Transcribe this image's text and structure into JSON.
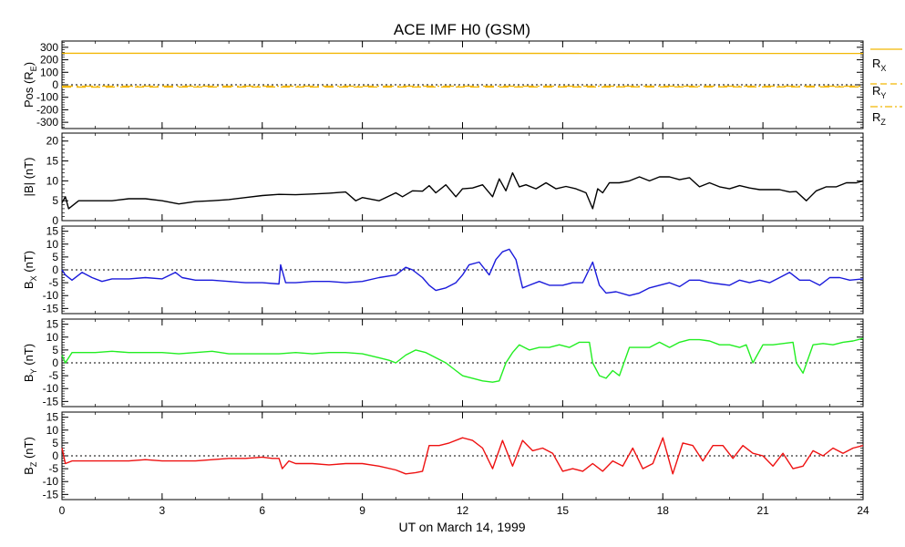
{
  "title": "ACE IMF H0 (GSM)",
  "xlabel": "UT on March 14, 1999",
  "chart_data": [
    {
      "type": "line",
      "panel": "position",
      "ylabel": {
        "main": "Pos (R",
        "sub": "E",
        "tail": ")"
      },
      "ylim": [
        -350,
        350
      ],
      "yticks": [
        -300,
        -200,
        -100,
        0,
        100,
        200,
        300
      ],
      "zero_line": true,
      "legend": [
        {
          "main": "R",
          "sub": "X"
        },
        {
          "main": "R",
          "sub": "Y"
        },
        {
          "main": "R",
          "sub": "Z"
        }
      ],
      "series": [
        {
          "name": "RX",
          "color": "#f2b705",
          "style": "solid",
          "x": [
            0,
            24
          ],
          "values": [
            252,
            251
          ]
        },
        {
          "name": "RY",
          "color": "#f2b705",
          "style": "dashed",
          "x": [
            0,
            24
          ],
          "values": [
            -18,
            -17
          ]
        },
        {
          "name": "RZ",
          "color": "#f2b705",
          "style": "dashdot",
          "x": [
            0,
            24
          ],
          "values": [
            -12,
            -12
          ]
        }
      ]
    },
    {
      "type": "line",
      "panel": "bmag",
      "ylabel": {
        "main": "|B| (nT)",
        "sub": "",
        "tail": ""
      },
      "ylim": [
        0,
        22
      ],
      "yticks": [
        0,
        5,
        10,
        15,
        20
      ],
      "zero_line": false,
      "series": [
        {
          "color": "#000000",
          "x": [
            0,
            0.1,
            0.2,
            0.5,
            1,
            1.5,
            2,
            2.5,
            3,
            3.5,
            4,
            4.5,
            5,
            5.5,
            6,
            6.5,
            7,
            7.5,
            8,
            8.5,
            8.8,
            9,
            9.5,
            10,
            10.2,
            10.5,
            10.8,
            11,
            11.2,
            11.5,
            11.8,
            12,
            12.3,
            12.6,
            12.9,
            13.1,
            13.3,
            13.5,
            13.7,
            13.9,
            14.2,
            14.5,
            14.8,
            15.1,
            15.4,
            15.7,
            15.9,
            16.05,
            16.2,
            16.4,
            16.7,
            17,
            17.3,
            17.6,
            17.9,
            18.2,
            18.5,
            18.8,
            19.1,
            19.4,
            19.7,
            20,
            20.3,
            20.6,
            20.9,
            21.2,
            21.5,
            21.8,
            22,
            22.3,
            22.6,
            22.9,
            23.2,
            23.5,
            23.8,
            24
          ],
          "values": [
            4.5,
            6,
            3,
            5,
            5,
            5,
            5.5,
            5.5,
            5,
            4.2,
            4.8,
            5,
            5.3,
            5.8,
            6.3,
            6.6,
            6.5,
            6.7,
            6.9,
            7.2,
            5,
            5.8,
            5,
            7,
            6,
            7.5,
            7.4,
            8.8,
            7,
            9,
            6,
            8,
            8.2,
            9,
            6,
            10.5,
            7.5,
            12,
            8.5,
            9,
            8,
            9.5,
            8,
            8.6,
            8,
            7,
            3,
            8,
            7,
            9.5,
            9.5,
            10,
            11,
            10,
            11,
            11,
            10.3,
            10.8,
            8.5,
            9.5,
            8.5,
            8,
            8.8,
            8.2,
            7.8,
            7.8,
            7.8,
            7.2,
            7.3,
            5,
            7.5,
            8.5,
            8.5,
            9.5,
            9.5,
            10
          ]
        }
      ]
    },
    {
      "type": "line",
      "panel": "bx",
      "ylabel": {
        "main": "B",
        "sub": "X",
        "tail": " (nT)"
      },
      "ylim": [
        -17,
        17
      ],
      "yticks": [
        -15,
        -10,
        -5,
        0,
        5,
        10,
        15
      ],
      "zero_line": true,
      "series": [
        {
          "color": "#1a1adb",
          "x": [
            0,
            0.1,
            0.3,
            0.6,
            0.9,
            1.2,
            1.5,
            2,
            2.5,
            3,
            3.4,
            3.6,
            4,
            4.5,
            5,
            5.5,
            6,
            6.5,
            6.55,
            6.7,
            7,
            7.5,
            8,
            8.5,
            9,
            9.5,
            10,
            10.3,
            10.5,
            10.8,
            11,
            11.2,
            11.5,
            11.8,
            12,
            12.2,
            12.5,
            12.8,
            13,
            13.2,
            13.4,
            13.6,
            13.8,
            14,
            14.3,
            14.6,
            15,
            15.3,
            15.6,
            15.9,
            16.1,
            16.3,
            16.6,
            17,
            17.3,
            17.6,
            17.9,
            18.2,
            18.5,
            18.8,
            19.1,
            19.4,
            19.7,
            20,
            20.3,
            20.6,
            20.9,
            21.2,
            21.5,
            21.8,
            22.1,
            22.4,
            22.7,
            23,
            23.3,
            23.6,
            24
          ],
          "values": [
            0,
            -2,
            -4,
            -1,
            -3,
            -4.5,
            -3.5,
            -3.5,
            -3,
            -3.5,
            -1,
            -3,
            -4,
            -4,
            -4.5,
            -5,
            -5,
            -5.5,
            2,
            -5,
            -5,
            -4.5,
            -4.5,
            -5,
            -4.5,
            -3,
            -2,
            1,
            0,
            -3,
            -6,
            -8,
            -7,
            -5,
            -2,
            2,
            3,
            -2,
            4,
            7,
            8,
            4,
            -7,
            -6,
            -4.5,
            -6,
            -6,
            -5,
            -5,
            3,
            -6,
            -9,
            -8.5,
            -10,
            -9,
            -7,
            -6,
            -5,
            -6.5,
            -4,
            -4,
            -5,
            -5.5,
            -6,
            -4,
            -5,
            -4,
            -5,
            -3,
            -1,
            -4,
            -4,
            -6,
            -3,
            -3,
            -4,
            -3.5
          ]
        }
      ]
    },
    {
      "type": "line",
      "panel": "by",
      "ylabel": {
        "main": "B",
        "sub": "Y",
        "tail": " (nT)"
      },
      "ylim": [
        -17,
        17
      ],
      "yticks": [
        -15,
        -10,
        -5,
        0,
        5,
        10,
        15
      ],
      "zero_line": true,
      "series": [
        {
          "color": "#22ee22",
          "x": [
            0,
            0.1,
            0.3,
            0.6,
            1,
            1.5,
            2,
            2.5,
            3,
            3.5,
            4,
            4.5,
            5,
            5.5,
            6,
            6.5,
            7,
            7.5,
            8,
            8.5,
            9,
            9.5,
            9.8,
            10,
            10.3,
            10.6,
            10.9,
            11.2,
            11.5,
            11.8,
            12,
            12.3,
            12.6,
            12.9,
            13.1,
            13.3,
            13.5,
            13.7,
            14,
            14.3,
            14.6,
            14.9,
            15.2,
            15.5,
            15.8,
            15.9,
            16.1,
            16.3,
            16.5,
            16.7,
            17,
            17.3,
            17.6,
            17.9,
            18.2,
            18.5,
            18.8,
            19.1,
            19.4,
            19.7,
            20,
            20.3,
            20.5,
            20.7,
            21,
            21.3,
            21.6,
            21.9,
            22,
            22.2,
            22.5,
            22.8,
            23.1,
            23.4,
            23.7,
            24
          ],
          "values": [
            3,
            0,
            4,
            4,
            4,
            4.5,
            4,
            4,
            4,
            3.5,
            4,
            4.5,
            3.5,
            3.5,
            3.5,
            3.5,
            4,
            3.5,
            4,
            4,
            3.5,
            2,
            1,
            0,
            3,
            5,
            4,
            2,
            0,
            -3,
            -5,
            -6,
            -7,
            -7.5,
            -7,
            0,
            4,
            7,
            5,
            6,
            6,
            7,
            6,
            8,
            8,
            0,
            -5,
            -6,
            -3,
            -5,
            6,
            6,
            6,
            8,
            6,
            8,
            9,
            9,
            8.5,
            7,
            7,
            6,
            7,
            0,
            7,
            7,
            7.5,
            8,
            0,
            -4,
            7,
            7.5,
            7,
            8,
            8.5,
            9.5
          ]
        }
      ]
    },
    {
      "type": "line",
      "panel": "bz",
      "ylabel": {
        "main": "B",
        "sub": "Z",
        "tail": " (nT)"
      },
      "ylim": [
        -17,
        17
      ],
      "yticks": [
        -15,
        -10,
        -5,
        0,
        5,
        10,
        15
      ],
      "zero_line": true,
      "series": [
        {
          "color": "#ee1111",
          "x": [
            0,
            0.1,
            0.3,
            0.6,
            1,
            1.5,
            2,
            2.5,
            3,
            3.5,
            4,
            4.5,
            5,
            5.5,
            6,
            6.3,
            6.5,
            6.6,
            6.8,
            7,
            7.5,
            8,
            8.5,
            9,
            9.5,
            10,
            10.3,
            10.6,
            10.8,
            11,
            11.3,
            11.6,
            12,
            12.3,
            12.6,
            12.9,
            13.2,
            13.5,
            13.8,
            14.1,
            14.4,
            14.7,
            15,
            15.3,
            15.6,
            15.9,
            16.2,
            16.5,
            16.8,
            17.1,
            17.4,
            17.7,
            18,
            18.3,
            18.6,
            18.9,
            19.2,
            19.5,
            19.8,
            20.1,
            20.4,
            20.7,
            21,
            21.3,
            21.6,
            21.9,
            22.2,
            22.5,
            22.8,
            23.1,
            23.4,
            23.7,
            24
          ],
          "values": [
            3,
            -3,
            -2,
            -2,
            -2,
            -2,
            -2,
            -1.5,
            -2,
            -2,
            -2,
            -1.5,
            -1,
            -1,
            -0.5,
            -1,
            -1,
            -5,
            -2,
            -3,
            -3,
            -3.5,
            -3,
            -3,
            -4,
            -5.5,
            -7,
            -6.5,
            -6,
            4,
            4,
            5,
            7,
            6,
            3,
            -5,
            6,
            -4,
            6,
            2,
            3,
            1,
            -6,
            -5,
            -6,
            -3,
            -6,
            -2,
            -4,
            3,
            -5,
            -3,
            7,
            -7,
            5,
            4,
            -2,
            4,
            4,
            -1,
            4,
            1,
            0,
            -4,
            1,
            -5,
            -4,
            2,
            0,
            3,
            1,
            3,
            4
          ]
        }
      ]
    }
  ],
  "xaxis": {
    "xlim": [
      0,
      24
    ],
    "xticks": [
      0,
      3,
      6,
      9,
      12,
      15,
      18,
      21,
      24
    ]
  }
}
